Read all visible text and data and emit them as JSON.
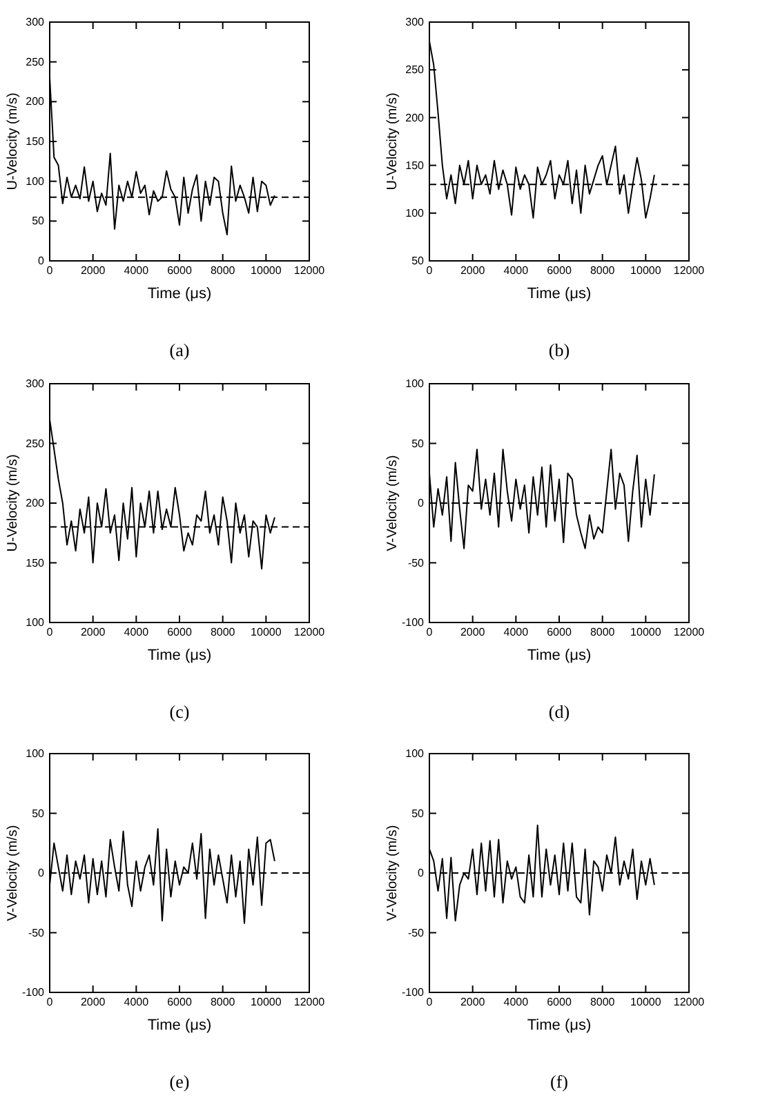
{
  "chart_data": [
    {
      "type": "line",
      "title": "(a)",
      "xlabel": "Time (μs)",
      "ylabel": "U-Velocity (m/s)",
      "xlim": [
        0,
        12000
      ],
      "xticks": [
        0,
        2000,
        4000,
        6000,
        8000,
        10000,
        12000
      ],
      "ylim": [
        0,
        300
      ],
      "yticks": [
        0,
        50,
        100,
        150,
        200,
        250,
        300
      ],
      "grid": false,
      "ref_lines": [
        {
          "axis": "y",
          "value": 80,
          "line_style": "dashed",
          "color": "#000000"
        }
      ],
      "series": [
        {
          "color": "#000000",
          "x": [
            0,
            200,
            400,
            600,
            800,
            1000,
            1200,
            1400,
            1600,
            1800,
            2000,
            2200,
            2400,
            2600,
            2800,
            3000,
            3200,
            3400,
            3600,
            3800,
            4000,
            4200,
            4400,
            4600,
            4800,
            5000,
            5200,
            5400,
            5600,
            5800,
            6000,
            6200,
            6400,
            6600,
            6800,
            7000,
            7200,
            7400,
            7600,
            7800,
            8000,
            8200,
            8400,
            8600,
            8800,
            9000,
            9200,
            9400,
            9600,
            9800,
            10000,
            10200,
            10400
          ],
          "values": [
            230,
            130,
            120,
            72,
            105,
            80,
            95,
            78,
            118,
            75,
            100,
            62,
            85,
            70,
            135,
            40,
            95,
            75,
            100,
            80,
            112,
            85,
            95,
            58,
            88,
            75,
            80,
            113,
            90,
            80,
            45,
            105,
            60,
            90,
            108,
            50,
            100,
            70,
            105,
            100,
            60,
            33,
            119,
            75,
            95,
            80,
            60,
            105,
            62,
            100,
            95,
            70,
            82
          ]
        }
      ]
    },
    {
      "type": "line",
      "title": "(b)",
      "xlabel": "Time (μs)",
      "ylabel": "U-Velocity (m/s)",
      "xlim": [
        0,
        12000
      ],
      "xticks": [
        0,
        2000,
        4000,
        6000,
        8000,
        10000,
        12000
      ],
      "ylim": [
        50,
        300
      ],
      "yticks": [
        50,
        100,
        150,
        200,
        250,
        300
      ],
      "grid": false,
      "ref_lines": [
        {
          "axis": "y",
          "value": 130,
          "line_style": "dashed",
          "color": "#000000"
        }
      ],
      "series": [
        {
          "color": "#000000",
          "x": [
            0,
            200,
            400,
            600,
            800,
            1000,
            1200,
            1400,
            1600,
            1800,
            2000,
            2200,
            2400,
            2600,
            2800,
            3000,
            3200,
            3400,
            3600,
            3800,
            4000,
            4200,
            4400,
            4600,
            4800,
            5000,
            5200,
            5400,
            5600,
            5800,
            6000,
            6200,
            6400,
            6600,
            6800,
            7000,
            7200,
            7400,
            7600,
            7800,
            8000,
            8200,
            8400,
            8600,
            8800,
            9000,
            9200,
            9400,
            9600,
            9800,
            10000,
            10200,
            10400
          ],
          "values": [
            280,
            255,
            205,
            150,
            115,
            140,
            110,
            150,
            130,
            155,
            115,
            150,
            130,
            140,
            120,
            155,
            125,
            145,
            130,
            98,
            148,
            125,
            140,
            130,
            95,
            148,
            130,
            140,
            155,
            115,
            140,
            130,
            155,
            110,
            145,
            100,
            150,
            120,
            135,
            150,
            160,
            130,
            150,
            170,
            120,
            140,
            100,
            130,
            158,
            135,
            95,
            115,
            140
          ]
        }
      ]
    },
    {
      "type": "line",
      "title": "(c)",
      "xlabel": "Time (μs)",
      "ylabel": "U-Velocity (m/s)",
      "xlim": [
        0,
        12000
      ],
      "xticks": [
        0,
        2000,
        4000,
        6000,
        8000,
        10000,
        12000
      ],
      "ylim": [
        100,
        300
      ],
      "yticks": [
        100,
        150,
        200,
        250,
        300
      ],
      "grid": false,
      "ref_lines": [
        {
          "axis": "y",
          "value": 180,
          "line_style": "dashed",
          "color": "#000000"
        }
      ],
      "series": [
        {
          "color": "#000000",
          "x": [
            0,
            200,
            400,
            600,
            800,
            1000,
            1200,
            1400,
            1600,
            1800,
            2000,
            2200,
            2400,
            2600,
            2800,
            3000,
            3200,
            3400,
            3600,
            3800,
            4000,
            4200,
            4400,
            4600,
            4800,
            5000,
            5200,
            5400,
            5600,
            5800,
            6000,
            6200,
            6400,
            6600,
            6800,
            7000,
            7200,
            7400,
            7600,
            7800,
            8000,
            8200,
            8400,
            8600,
            8800,
            9000,
            9200,
            9400,
            9600,
            9800,
            10000,
            10200,
            10400
          ],
          "values": [
            270,
            245,
            220,
            200,
            165,
            185,
            160,
            195,
            175,
            205,
            150,
            200,
            180,
            212,
            175,
            190,
            152,
            200,
            170,
            213,
            155,
            200,
            180,
            210,
            175,
            210,
            178,
            195,
            180,
            213,
            190,
            160,
            175,
            165,
            190,
            185,
            210,
            175,
            190,
            165,
            205,
            185,
            150,
            200,
            175,
            190,
            155,
            185,
            180,
            145,
            190,
            175,
            188
          ]
        }
      ]
    },
    {
      "type": "line",
      "title": "(d)",
      "xlabel": "Time (μs)",
      "ylabel": "V-Velocity (m/s)",
      "xlim": [
        0,
        12000
      ],
      "xticks": [
        0,
        2000,
        4000,
        6000,
        8000,
        10000,
        12000
      ],
      "ylim": [
        -100,
        100
      ],
      "yticks": [
        -100,
        -50,
        0,
        50,
        100
      ],
      "grid": false,
      "ref_lines": [
        {
          "axis": "y",
          "value": 0,
          "line_style": "dashed",
          "color": "#000000"
        }
      ],
      "series": [
        {
          "color": "#000000",
          "x": [
            0,
            200,
            400,
            600,
            800,
            1000,
            1200,
            1400,
            1600,
            1800,
            2000,
            2200,
            2400,
            2600,
            2800,
            3000,
            3200,
            3400,
            3600,
            3800,
            4000,
            4200,
            4400,
            4600,
            4800,
            5000,
            5200,
            5400,
            5600,
            5800,
            6000,
            6200,
            6400,
            6600,
            6800,
            7000,
            7200,
            7400,
            7600,
            7800,
            8000,
            8200,
            8400,
            8600,
            8800,
            9000,
            9200,
            9400,
            9600,
            9800,
            10000,
            10200,
            10400
          ],
          "values": [
            25,
            -20,
            12,
            -10,
            22,
            -32,
            34,
            -5,
            -38,
            15,
            10,
            45,
            -5,
            20,
            -10,
            25,
            -20,
            45,
            10,
            -15,
            20,
            -5,
            15,
            -25,
            22,
            -10,
            30,
            -20,
            32,
            -15,
            20,
            -33,
            25,
            20,
            -10,
            -25,
            -38,
            -10,
            -30,
            -20,
            -25,
            10,
            45,
            -5,
            25,
            15,
            -32,
            10,
            40,
            -20,
            20,
            -10,
            24
          ]
        }
      ]
    },
    {
      "type": "line",
      "title": "(e)",
      "xlabel": "Time (μs)",
      "ylabel": "V-Velocity (m/s)",
      "xlim": [
        0,
        12000
      ],
      "xticks": [
        0,
        2000,
        4000,
        6000,
        8000,
        10000,
        12000
      ],
      "ylim": [
        -100,
        100
      ],
      "yticks": [
        -100,
        -50,
        0,
        50,
        100
      ],
      "grid": false,
      "ref_lines": [
        {
          "axis": "y",
          "value": 0,
          "line_style": "dashed",
          "color": "#000000"
        }
      ],
      "series": [
        {
          "color": "#000000",
          "x": [
            0,
            200,
            400,
            600,
            800,
            1000,
            1200,
            1400,
            1600,
            1800,
            2000,
            2200,
            2400,
            2600,
            2800,
            3000,
            3200,
            3400,
            3600,
            3800,
            4000,
            4200,
            4400,
            4600,
            4800,
            5000,
            5200,
            5400,
            5600,
            5800,
            6000,
            6200,
            6400,
            6600,
            6800,
            7000,
            7200,
            7400,
            7600,
            7800,
            8000,
            8200,
            8400,
            8600,
            8800,
            9000,
            9200,
            9400,
            9600,
            9800,
            10000,
            10200,
            10400
          ],
          "values": [
            -10,
            25,
            5,
            -15,
            15,
            -18,
            10,
            -5,
            15,
            -25,
            12,
            -18,
            10,
            -20,
            28,
            5,
            -15,
            35,
            -10,
            -28,
            10,
            -15,
            5,
            15,
            -10,
            37,
            -40,
            20,
            -20,
            10,
            -10,
            5,
            0,
            25,
            -5,
            33,
            -38,
            20,
            -10,
            15,
            -5,
            -25,
            15,
            -20,
            10,
            -42,
            20,
            -10,
            30,
            -27,
            25,
            28,
            10
          ]
        }
      ]
    },
    {
      "type": "line",
      "title": "(f)",
      "xlabel": "Time (μs)",
      "ylabel": "V-Velocity (m/s)",
      "xlim": [
        0,
        12000
      ],
      "xticks": [
        0,
        2000,
        4000,
        6000,
        8000,
        10000,
        12000
      ],
      "ylim": [
        -100,
        100
      ],
      "yticks": [
        -100,
        -50,
        0,
        50,
        100
      ],
      "grid": false,
      "ref_lines": [
        {
          "axis": "y",
          "value": 0,
          "line_style": "dashed",
          "color": "#000000"
        }
      ],
      "series": [
        {
          "color": "#000000",
          "x": [
            0,
            200,
            400,
            600,
            800,
            1000,
            1200,
            1400,
            1600,
            1800,
            2000,
            2200,
            2400,
            2600,
            2800,
            3000,
            3200,
            3400,
            3600,
            3800,
            4000,
            4200,
            4400,
            4600,
            4800,
            5000,
            5200,
            5400,
            5600,
            5800,
            6000,
            6200,
            6400,
            6600,
            6800,
            7000,
            7200,
            7400,
            7600,
            7800,
            8000,
            8200,
            8400,
            8600,
            8800,
            9000,
            9200,
            9400,
            9600,
            9800,
            10000,
            10200,
            10400
          ],
          "values": [
            20,
            10,
            -15,
            12,
            -38,
            13,
            -40,
            -10,
            0,
            -5,
            20,
            -18,
            25,
            -15,
            27,
            -20,
            28,
            -25,
            10,
            -5,
            5,
            -20,
            -25,
            15,
            -20,
            40,
            -20,
            20,
            -10,
            15,
            -18,
            25,
            -15,
            25,
            -20,
            -25,
            20,
            -35,
            10,
            5,
            -15,
            15,
            0,
            30,
            -10,
            10,
            -5,
            20,
            -22,
            10,
            -10,
            12,
            -10
          ]
        }
      ]
    }
  ]
}
